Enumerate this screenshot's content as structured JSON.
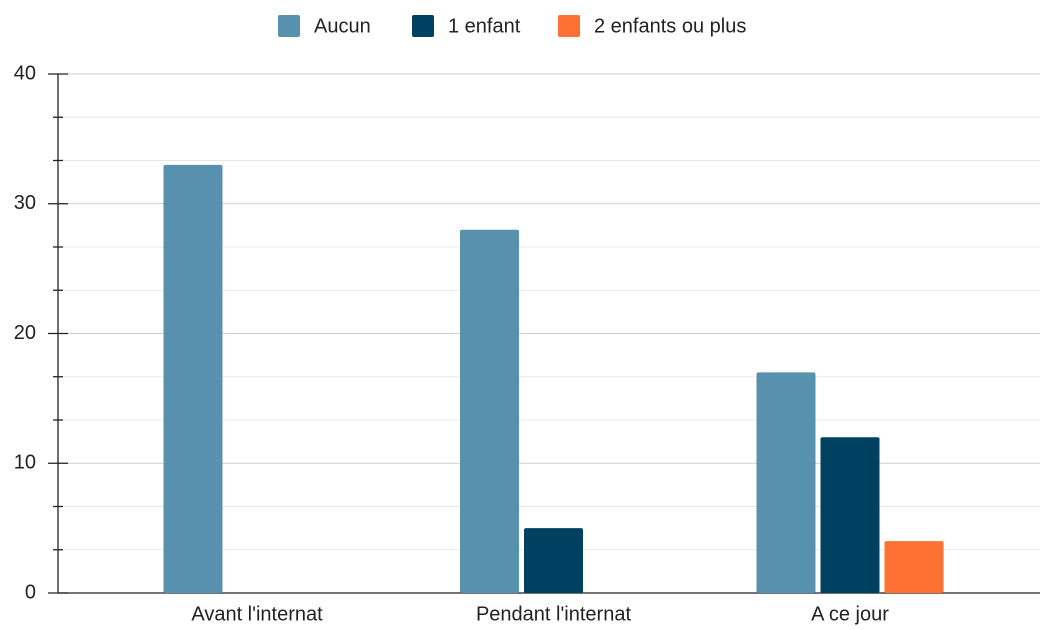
{
  "chart_data": {
    "type": "bar",
    "categories": [
      "Avant l'internat",
      "Pendant l'internat",
      "A ce jour"
    ],
    "series": [
      {
        "name": "Aucun",
        "color": "#5891ad",
        "values": [
          33,
          28,
          17
        ]
      },
      {
        "name": "1 enfant",
        "color": "#004161",
        "values": [
          0,
          5,
          12
        ]
      },
      {
        "name": "2 enfants ou plus",
        "color": "#ff7033",
        "values": [
          0,
          0,
          4
        ]
      }
    ],
    "ylim": [
      0,
      40
    ],
    "yticks": [
      0,
      10,
      20,
      30,
      40
    ],
    "grid": true,
    "minor_divisions": 3,
    "legend": "top"
  }
}
